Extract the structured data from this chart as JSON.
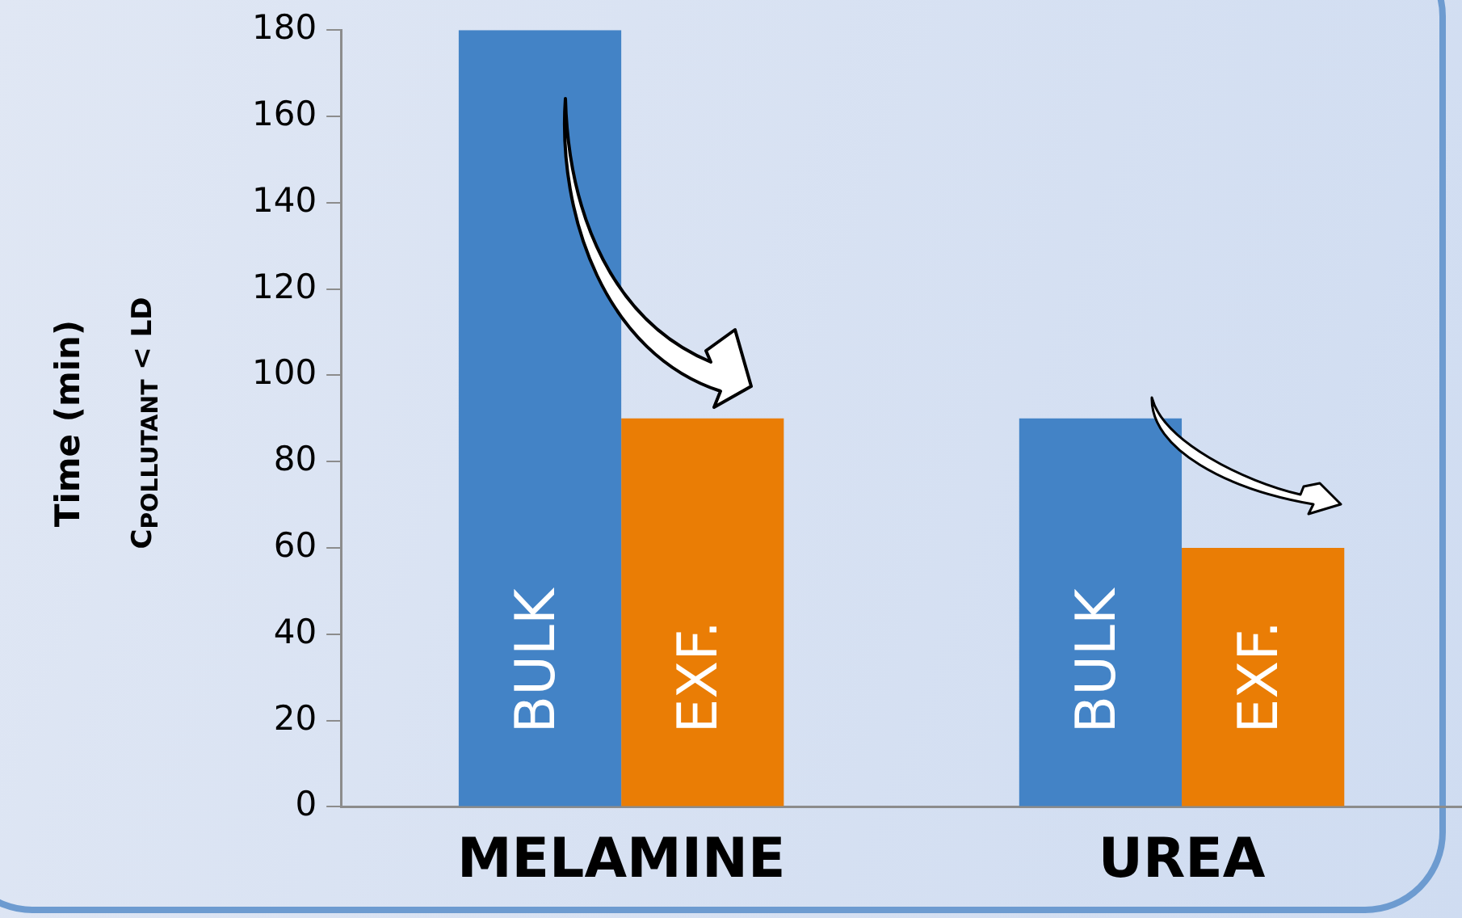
{
  "chart_data": {
    "type": "bar",
    "ylabel": "Time (min)\nC$_{POLLUTANT}$ < LD",
    "categories": [
      "MELAMINE",
      "UREA"
    ],
    "series": [
      {
        "name": "BULK",
        "color": "#4383c6",
        "values": [
          180,
          90
        ]
      },
      {
        "name": "EXF.",
        "color": "#ea7d05",
        "values": [
          90,
          60
        ]
      }
    ],
    "ylim": [
      0,
      180
    ],
    "yticks": [
      0,
      20,
      40,
      60,
      80,
      100,
      120,
      140,
      160,
      180
    ],
    "grid": false,
    "legend": false
  }
}
